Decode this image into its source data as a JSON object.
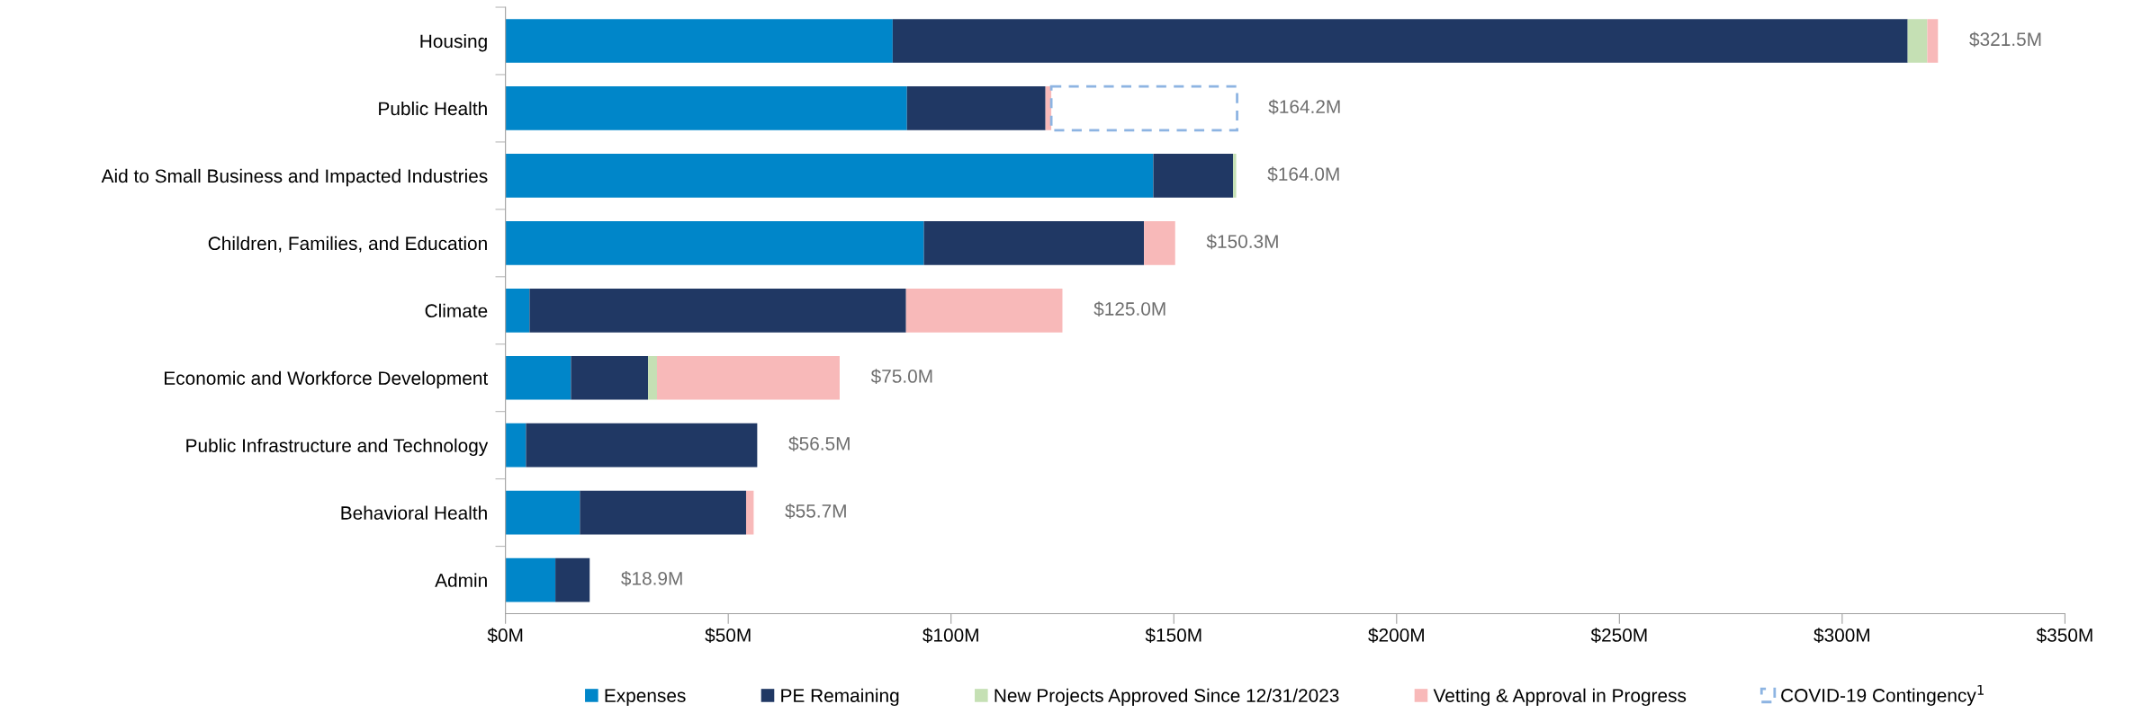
{
  "chart_data": {
    "type": "bar",
    "orientation": "horizontal",
    "stacked": true,
    "categories": [
      "Housing",
      "Public Health",
      "Aid to Small Business and Impacted Industries",
      "Children, Families, and Education",
      "Climate",
      "Economic and Workforce Development",
      "Public Infrastructure and Technology",
      "Behavioral Health",
      "Admin"
    ],
    "series": [
      {
        "name": "Expenses",
        "color": "#0086c9",
        "values": [
          86.9,
          90.1,
          145.4,
          93.9,
          5.4,
          14.7,
          4.6,
          16.7,
          11.2
        ]
      },
      {
        "name": "PE Remaining",
        "color": "#203864",
        "values": [
          227.8,
          31.1,
          17.9,
          49.4,
          84.5,
          17.3,
          51.9,
          37.3,
          7.7
        ]
      },
      {
        "name": "New Projects Approved Since 12/31/2023",
        "color": "#c5e0b4",
        "values": [
          4.4,
          null,
          0.7,
          null,
          null,
          2.0,
          null,
          null,
          null
        ]
      },
      {
        "name": "Vetting & Approval in Progress",
        "color": "#f8b9b9",
        "values": [
          2.4,
          1.3,
          null,
          7.0,
          35.1,
          41.0,
          null,
          1.7,
          null
        ]
      },
      {
        "name": "COVID-19 Contingency$^{1}$",
        "color": "#8db4e2",
        "line_style": "dashed",
        "values": [
          null,
          41.7,
          null,
          null,
          null,
          null,
          null,
          null,
          null
        ]
      }
    ],
    "totals": [
      "$321.5M",
      "$164.2M",
      "$164.0M",
      "$150.3M",
      "$125.0M",
      "$75.0M",
      "$56.5M",
      "$55.7M",
      "$18.9M"
    ],
    "xlim": [
      0,
      350
    ],
    "xticks": [
      {
        "value": 0,
        "label": "$0M"
      },
      {
        "value": 50,
        "label": "$50M"
      },
      {
        "value": 100,
        "label": "$100M"
      },
      {
        "value": 150,
        "label": "$150M"
      },
      {
        "value": 200,
        "label": "$200M"
      },
      {
        "value": 250,
        "label": "$250M"
      },
      {
        "value": 300,
        "label": "$300M"
      },
      {
        "value": 350,
        "label": "$350M"
      }
    ],
    "grid": false,
    "legend": "bottom"
  }
}
